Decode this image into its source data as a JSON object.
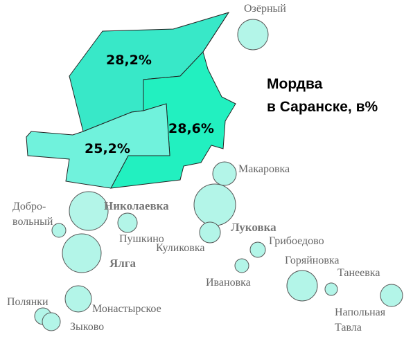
{
  "title": [
    "Мордва",
    "в Саранске, в%"
  ],
  "districts": [
    {
      "label": "28,2%"
    },
    {
      "label": "28,6%"
    },
    {
      "label": "25,2%"
    }
  ],
  "settlements": [
    {
      "label": [
        "Озёрный"
      ]
    },
    {
      "label": [
        "Макаровка"
      ]
    },
    {
      "label": [
        "Добро-",
        "вольный"
      ]
    },
    {
      "label": [
        "Николаевка"
      ]
    },
    {
      "label": [
        "Пушкино"
      ]
    },
    {
      "label": [
        "Луковка"
      ]
    },
    {
      "label": [
        "Грибоедово"
      ]
    },
    {
      "label": [
        "Куликовка"
      ]
    },
    {
      "label": [
        "Ялга"
      ]
    },
    {
      "label": [
        "Горяйновка"
      ]
    },
    {
      "label": [
        "Ивановка"
      ]
    },
    {
      "label": [
        "Танеевка"
      ]
    },
    {
      "label": [
        "Полянки"
      ]
    },
    {
      "label": [
        "Монастырское"
      ]
    },
    {
      "label": [
        "Напольная",
        "Тавла"
      ]
    },
    {
      "label": [
        "Зыково"
      ]
    }
  ]
}
